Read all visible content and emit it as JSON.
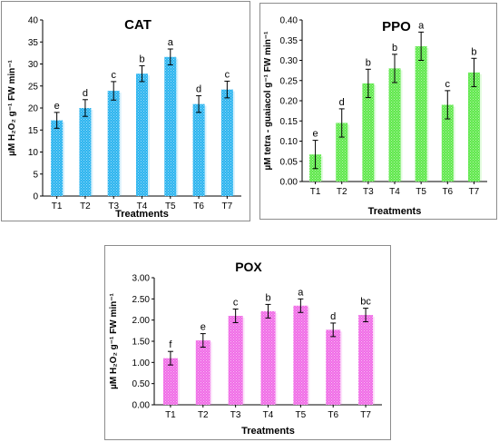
{
  "chart_data": [
    {
      "type": "bar",
      "title": "CAT",
      "xlabel": "Treatments",
      "ylabel": "µM H₂O₂ g⁻¹ FW min⁻¹",
      "categories": [
        "T1",
        "T2",
        "T3",
        "T4",
        "T5",
        "T6",
        "T7"
      ],
      "values": [
        17.2,
        20.0,
        23.9,
        27.8,
        31.6,
        20.9,
        24.2
      ],
      "errors": [
        1.8,
        1.9,
        2.1,
        1.8,
        1.8,
        1.9,
        1.9
      ],
      "letters": [
        "e",
        "d",
        "c",
        "b",
        "a",
        "d",
        "c"
      ],
      "ylim": [
        0,
        40
      ],
      "yticks": [
        "0",
        "5",
        "10",
        "15",
        "20",
        "25",
        "30",
        "35",
        "40"
      ],
      "bar_color": "#29b3ef",
      "grid": false
    },
    {
      "type": "bar",
      "title": "PPO",
      "xlabel": "Treatments",
      "ylabel": "µM tetra - guaiacol g⁻¹ FW min⁻¹",
      "categories": [
        "T1",
        "T2",
        "T3",
        "T4",
        "T5",
        "T6",
        "T7"
      ],
      "values": [
        0.067,
        0.145,
        0.243,
        0.28,
        0.335,
        0.19,
        0.27
      ],
      "errors": [
        0.035,
        0.035,
        0.035,
        0.035,
        0.035,
        0.035,
        0.035
      ],
      "letters": [
        "e",
        "d",
        "b",
        "b",
        "a",
        "c",
        "b"
      ],
      "ylim": [
        0,
        0.4
      ],
      "yticks": [
        "0.00",
        "0.05",
        "0.10",
        "0.15",
        "0.20",
        "0.25",
        "0.30",
        "0.35",
        "0.40"
      ],
      "bar_color": "#5ee84a",
      "grid": false
    },
    {
      "type": "bar",
      "title": "POX",
      "xlabel": "Treatments",
      "ylabel": "µM H₂O₂ g⁻¹ FW min⁻¹",
      "categories": [
        "T1",
        "T2",
        "T3",
        "T4",
        "T5",
        "T6",
        "T7"
      ],
      "values": [
        1.1,
        1.52,
        2.1,
        2.21,
        2.34,
        1.77,
        2.12
      ],
      "errors": [
        0.16,
        0.16,
        0.16,
        0.16,
        0.16,
        0.16,
        0.16
      ],
      "letters": [
        "f",
        "e",
        "c",
        "b",
        "a",
        "d",
        "bc"
      ],
      "ylim": [
        0,
        3.0
      ],
      "yticks": [
        "0.00",
        "0.50",
        "1.00",
        "1.50",
        "2.00",
        "2.50",
        "3.00"
      ],
      "bar_color": "#f06be6",
      "grid": false
    }
  ]
}
